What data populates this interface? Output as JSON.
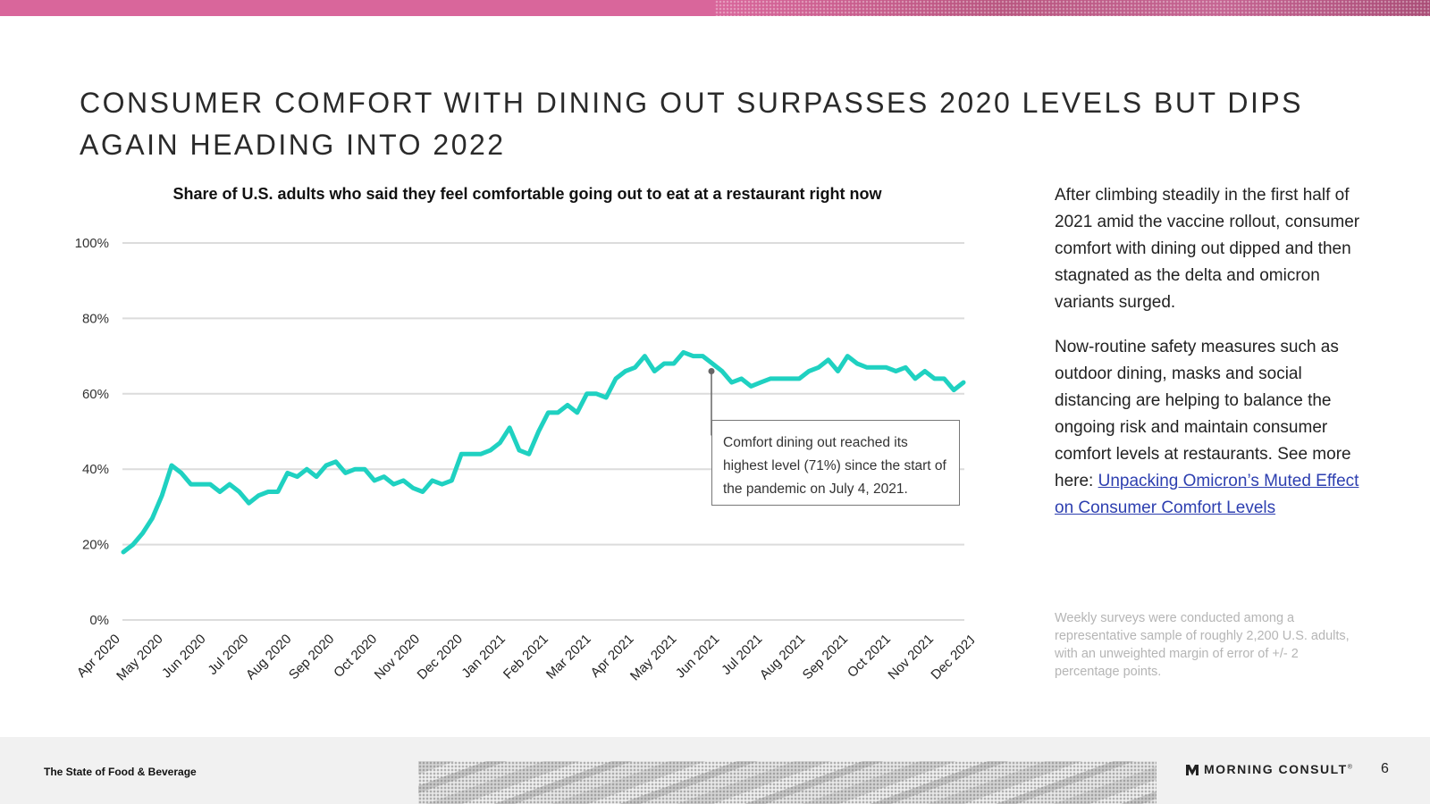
{
  "header": {
    "title": "CONSUMER COMFORT WITH DINING OUT SURPASSES 2020 LEVELS BUT DIPS AGAIN HEADING INTO 2022"
  },
  "colors": {
    "accent": "#d9669b",
    "series": "#1fd1c1",
    "link": "#2d3fb0"
  },
  "chart_data": {
    "type": "line",
    "title": "Share of U.S. adults who said they feel comfortable going out to eat at a restaurant right now",
    "xlabel": "",
    "ylabel": "",
    "ylim": [
      0,
      100
    ],
    "y_ticks": [
      "0%",
      "20%",
      "40%",
      "60%",
      "80%",
      "100%"
    ],
    "x_ticks": [
      "Apr 2020",
      "May 2020",
      "Jun 2020",
      "Jul 2020",
      "Aug 2020",
      "Sep 2020",
      "Oct 2020",
      "Nov 2020",
      "Dec 2020",
      "Jan 2021",
      "Feb 2021",
      "Mar 2021",
      "Apr 2021",
      "May 2021",
      "Jun 2021",
      "Jul 2021",
      "Aug 2021",
      "Sep 2021",
      "Oct 2021",
      "Nov 2021",
      "Dec 2021"
    ],
    "grid": true,
    "series": [
      {
        "values": [
          18,
          20,
          23,
          27,
          33,
          41,
          39,
          36,
          36,
          36,
          34,
          36,
          34,
          31,
          33,
          34,
          34,
          39,
          38,
          40,
          38,
          41,
          42,
          39,
          40,
          40,
          37,
          38,
          36,
          37,
          35,
          34,
          37,
          36,
          37,
          44,
          44,
          44,
          45,
          47,
          51,
          45,
          44,
          50,
          55,
          55,
          57,
          55,
          60,
          60,
          59,
          64,
          66,
          67,
          70,
          66,
          68,
          68,
          71,
          70,
          70,
          68,
          66,
          63,
          64,
          62,
          63,
          64,
          64,
          64,
          64,
          66,
          67,
          69,
          66,
          70,
          68,
          67,
          67,
          67,
          66,
          67,
          64,
          66,
          64,
          64,
          61,
          63
        ]
      }
    ],
    "annotation": {
      "text": "Comfort dining out reached its highest level (71%) since the start of the pandemic on July 4, 2021."
    }
  },
  "side": {
    "paragraph1": "After climbing steadily in the first half of 2021 amid the vaccine rollout, consumer comfort with dining out dipped and then stagnated as the delta and omicron variants surged.",
    "paragraph2": "Now-routine safety measures such as outdoor dining, masks and social distancing are helping to balance the ongoing risk and maintain consumer comfort levels at restaurants. See more here:",
    "link_text": "Unpacking Omicron’s Muted Effect on Consumer Comfort Levels",
    "note": "Weekly surveys were conducted among a representative sample of roughly 2,200 U.S. adults, with an unweighted margin of error of +/- 2 percentage points."
  },
  "footer": {
    "label": "The State of Food & Beverage",
    "logo_text": "MORNING CONSULT",
    "logo_mark": "®",
    "page_number": "6"
  }
}
